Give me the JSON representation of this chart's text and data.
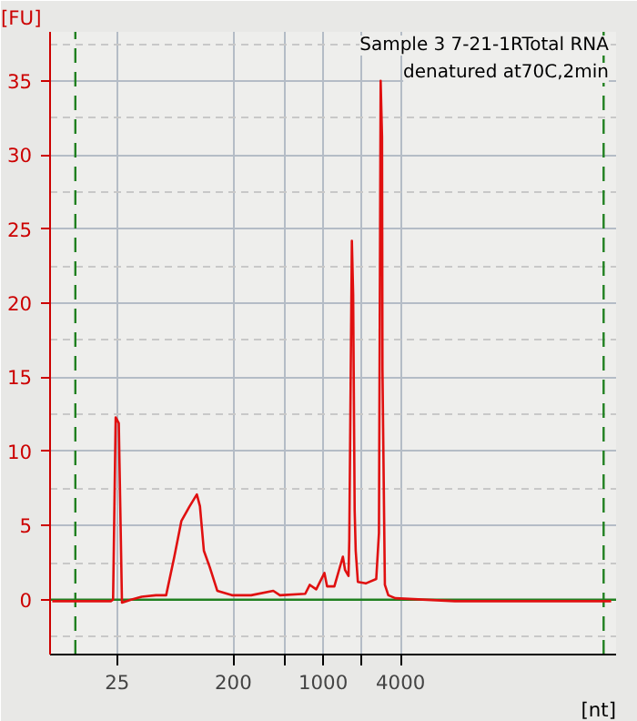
{
  "chart_data": {
    "type": "line",
    "title": "Sample 3 7-21-1RTotal RNA",
    "subtitle": "denatured at70C,2min",
    "xlabel": "[nt]",
    "ylabel": "[FU]",
    "series": [
      {
        "color": "#e01010",
        "x": [
          7.8,
          13.5,
          22.3,
          23.2,
          24.3,
          25.7,
          27.2,
          32,
          38.7,
          50,
          60,
          69.5,
          78.8,
          91.4,
          104,
          110,
          118,
          131,
          150,
          195,
          275,
          409,
          461,
          725,
          787,
          883,
          1023,
          1072,
          1222,
          1423,
          1480,
          1574,
          1597,
          1672,
          1711,
          1758,
          1791,
          1862,
          2144,
          2587,
          2716,
          2800,
          2871,
          2893,
          3020,
          3213,
          3643,
          10600,
          53000,
          174000
        ],
        "values": [
          -0.1,
          -0.1,
          -0.1,
          0,
          12.3,
          11.9,
          -0.2,
          0,
          0.2,
          0.3,
          0.3,
          2.9,
          5.3,
          6.3,
          7.1,
          6.3,
          3.3,
          2.2,
          0.6,
          0.3,
          0.3,
          0.6,
          0.3,
          0.4,
          1.0,
          0.7,
          1.8,
          0.9,
          0.9,
          2.9,
          2.0,
          1.6,
          4.1,
          24.2,
          20.6,
          6,
          3.3,
          1.2,
          1.1,
          1.4,
          4.5,
          35.0,
          31.2,
          15.5,
          1.0,
          0.3,
          0.1,
          -0.1,
          -0.1,
          -0.1
        ]
      }
    ],
    "xlim": [
      7.5,
      190000
    ],
    "log": "x",
    "ylim": [
      -3.7,
      38.3
    ],
    "xticks": [
      25,
      200,
      {
        "value": 500,
        "label": null
      },
      1000,
      {
        "value": 2000,
        "label": null
      },
      4000
    ],
    "yticks": [
      0,
      5,
      10,
      15,
      20,
      25,
      30,
      35
    ],
    "grid": true,
    "line_style": "solid",
    "ref_lines": [
      {
        "axis": "y",
        "value": 0,
        "color": "#208020",
        "line_style": "solid"
      },
      {
        "axis": "x",
        "value": 11.8,
        "color": "#208020",
        "line_style": "dashed"
      },
      {
        "axis": "x",
        "value": 152000,
        "color": "#208020",
        "line_style": "dashed"
      }
    ]
  }
}
